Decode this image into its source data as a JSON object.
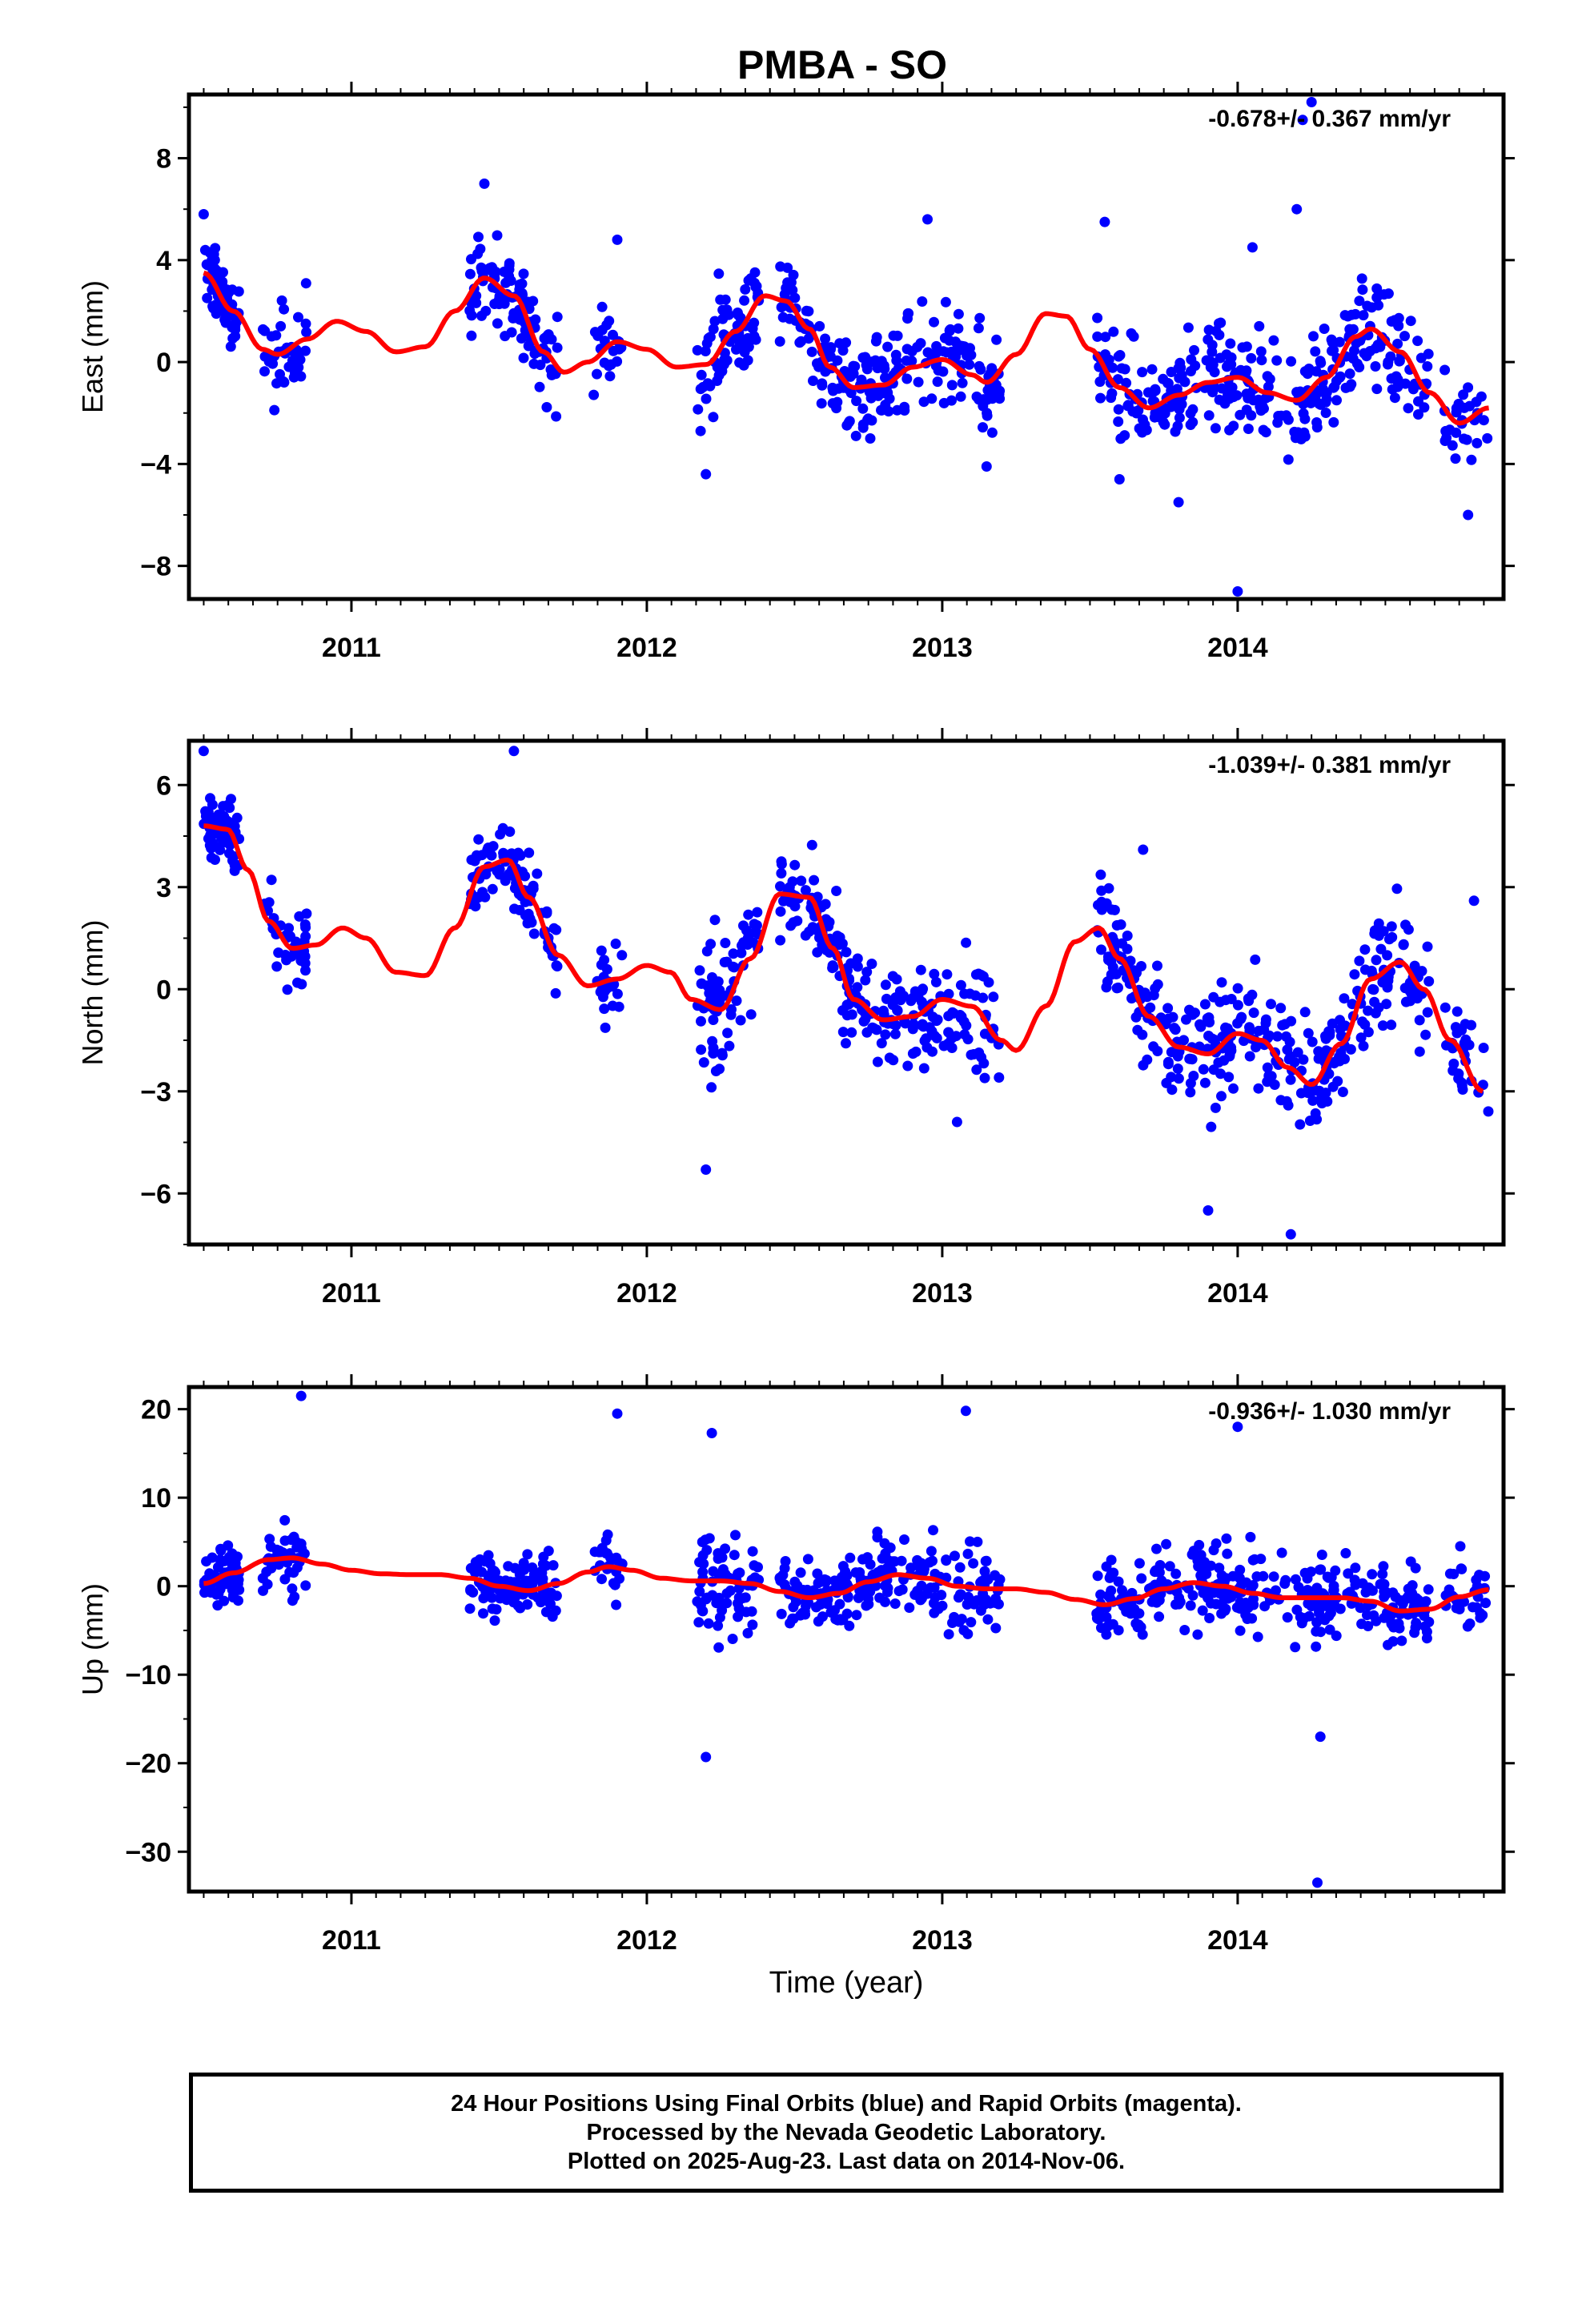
{
  "title": "PMBA - SO",
  "footer": {
    "line1": "24 Hour Positions Using Final Orbits (blue) and Rapid Orbits (magenta).",
    "line2": "Processed by the Nevada Geodetic Laboratory.",
    "line3": "Plotted on 2025-Aug-23. Last data on 2014-Nov-06."
  },
  "colors": {
    "points": "#0000ff",
    "fit": "#ff0000",
    "frame": "#000000"
  },
  "chart_data": [
    {
      "type": "scatter",
      "ylabel": "East (mm)",
      "xlabel": "",
      "rate_label": "-0.678+/- 0.367 mm/yr",
      "xlim": [
        2010.45,
        2014.9
      ],
      "ylim": [
        -9.3,
        10.5
      ],
      "yticks": [
        -8,
        -4,
        0,
        4,
        8
      ],
      "ytick_labels": [
        "−8",
        "−4",
        "0",
        "4",
        "8"
      ],
      "xticks": [
        2011,
        2012,
        2013,
        2014
      ],
      "xtick_labels": [
        "2011",
        "2012",
        "2013",
        "2014"
      ],
      "grid": false,
      "fit_line": {
        "name": "",
        "x": [
          2010.5,
          2010.6,
          2010.7,
          2010.75,
          2010.85,
          2010.95,
          2011.05,
          2011.15,
          2011.25,
          2011.35,
          2011.45,
          2011.55,
          2011.65,
          2011.72,
          2011.8,
          2011.9,
          2012.0,
          2012.1,
          2012.2,
          2012.3,
          2012.4,
          2012.47,
          2012.55,
          2012.62,
          2012.7,
          2012.8,
          2012.9,
          2013.0,
          2013.1,
          2013.15,
          2013.25,
          2013.35,
          2013.42,
          2013.5,
          2013.6,
          2013.7,
          2013.8,
          2013.9,
          2014.0,
          2014.1,
          2014.2,
          2014.3,
          2014.4,
          2014.45,
          2014.55,
          2014.65,
          2014.75,
          2014.85
        ],
        "y": [
          3.5,
          2.0,
          0.5,
          0.3,
          0.9,
          1.6,
          1.2,
          0.4,
          0.6,
          2.0,
          3.3,
          2.6,
          0.4,
          -0.4,
          0.0,
          0.8,
          0.5,
          -0.2,
          -0.1,
          1.2,
          2.6,
          2.4,
          1.3,
          -0.2,
          -1.0,
          -0.9,
          -0.2,
          0.1,
          -0.5,
          -0.8,
          0.3,
          1.9,
          1.8,
          0.5,
          -1.0,
          -1.8,
          -1.3,
          -0.8,
          -0.6,
          -1.2,
          -1.5,
          -0.6,
          1.0,
          1.3,
          0.4,
          -1.2,
          -2.4,
          -1.8
        ]
      },
      "outliers": [
        {
          "x": 2010.5,
          "y": 5.8
        },
        {
          "x": 2011.45,
          "y": 7.0
        },
        {
          "x": 2011.9,
          "y": 4.8
        },
        {
          "x": 2012.2,
          "y": -4.4
        },
        {
          "x": 2012.95,
          "y": 5.6
        },
        {
          "x": 2013.15,
          "y": -4.1
        },
        {
          "x": 2013.55,
          "y": 5.5
        },
        {
          "x": 2013.6,
          "y": -4.6
        },
        {
          "x": 2013.8,
          "y": -5.5
        },
        {
          "x": 2014.0,
          "y": -9.0
        },
        {
          "x": 2014.05,
          "y": 4.5
        },
        {
          "x": 2014.2,
          "y": 6.0
        },
        {
          "x": 2014.22,
          "y": 9.5
        },
        {
          "x": 2014.25,
          "y": 10.2
        },
        {
          "x": 2014.78,
          "y": -6.0
        }
      ],
      "segments": [
        {
          "x0": 2010.5,
          "x1": 2010.62,
          "n": 60,
          "spread": 1.0
        },
        {
          "x0": 2010.7,
          "x1": 2010.85,
          "n": 40,
          "spread": 1.5
        },
        {
          "x0": 2011.4,
          "x1": 2011.6,
          "n": 70,
          "spread": 1.3
        },
        {
          "x0": 2011.6,
          "x1": 2011.7,
          "n": 30,
          "spread": 1.5
        },
        {
          "x0": 2011.82,
          "x1": 2011.92,
          "n": 22,
          "spread": 1.3
        },
        {
          "x0": 2012.17,
          "x1": 2012.38,
          "n": 70,
          "spread": 1.8
        },
        {
          "x0": 2012.45,
          "x1": 2012.6,
          "n": 45,
          "spread": 1.2
        },
        {
          "x0": 2012.6,
          "x1": 2012.85,
          "n": 90,
          "spread": 1.5
        },
        {
          "x0": 2012.85,
          "x1": 2013.2,
          "n": 90,
          "spread": 1.6
        },
        {
          "x0": 2013.52,
          "x1": 2013.82,
          "n": 90,
          "spread": 1.5
        },
        {
          "x0": 2013.82,
          "x1": 2014.3,
          "n": 140,
          "spread": 1.6
        },
        {
          "x0": 2014.3,
          "x1": 2014.65,
          "n": 100,
          "spread": 1.5
        },
        {
          "x0": 2014.7,
          "x1": 2014.85,
          "n": 30,
          "spread": 1.3
        }
      ]
    },
    {
      "type": "scatter",
      "ylabel": "North (mm)",
      "xlabel": "",
      "rate_label": "-1.039+/- 0.381 mm/yr",
      "xlim": [
        2010.45,
        2014.9
      ],
      "ylim": [
        -7.5,
        7.3
      ],
      "yticks": [
        -6,
        -3,
        0,
        3,
        6
      ],
      "ytick_labels": [
        "−6",
        "−3",
        "0",
        "3",
        "6"
      ],
      "xticks": [
        2011,
        2012,
        2013,
        2014
      ],
      "xtick_labels": [
        "2011",
        "2012",
        "2013",
        "2014"
      ],
      "grid": false,
      "fit_line": {
        "name": "",
        "x": [
          2010.5,
          2010.58,
          2010.65,
          2010.72,
          2010.8,
          2010.88,
          2010.97,
          2011.05,
          2011.15,
          2011.25,
          2011.35,
          2011.45,
          2011.53,
          2011.6,
          2011.7,
          2011.8,
          2011.9,
          2012.0,
          2012.08,
          2012.15,
          2012.25,
          2012.35,
          2012.45,
          2012.55,
          2012.63,
          2012.7,
          2012.8,
          2012.9,
          2013.0,
          2013.1,
          2013.2,
          2013.25,
          2013.35,
          2013.45,
          2013.53,
          2013.6,
          2013.7,
          2013.8,
          2013.9,
          2014.0,
          2014.08,
          2014.17,
          2014.25,
          2014.35,
          2014.45,
          2014.55,
          2014.63,
          2014.72,
          2014.83
        ],
        "y": [
          4.8,
          4.7,
          3.5,
          2.0,
          1.2,
          1.3,
          1.8,
          1.5,
          0.5,
          0.4,
          1.8,
          3.6,
          3.8,
          2.7,
          1.0,
          0.1,
          0.3,
          0.7,
          0.5,
          -0.3,
          -0.6,
          0.9,
          2.8,
          2.7,
          1.2,
          -0.3,
          -0.9,
          -0.8,
          -0.3,
          -0.5,
          -1.5,
          -1.8,
          -0.5,
          1.4,
          1.8,
          0.9,
          -0.8,
          -1.7,
          -1.9,
          -1.3,
          -1.5,
          -2.3,
          -2.8,
          -1.6,
          0.3,
          0.8,
          0.0,
          -1.5,
          -3.0
        ]
      },
      "outliers": [
        {
          "x": 2010.5,
          "y": 7.0
        },
        {
          "x": 2011.55,
          "y": 7.0
        },
        {
          "x": 2012.2,
          "y": -5.3
        },
        {
          "x": 2013.05,
          "y": -3.9
        },
        {
          "x": 2013.68,
          "y": 4.1
        },
        {
          "x": 2013.9,
          "y": -6.5
        },
        {
          "x": 2014.18,
          "y": -7.2
        },
        {
          "x": 2014.8,
          "y": 2.6
        }
      ],
      "segments": [
        {
          "x0": 2010.5,
          "x1": 2010.62,
          "n": 60,
          "spread": 0.9
        },
        {
          "x0": 2010.7,
          "x1": 2010.85,
          "n": 40,
          "spread": 1.0
        },
        {
          "x0": 2011.4,
          "x1": 2011.6,
          "n": 70,
          "spread": 0.9
        },
        {
          "x0": 2011.6,
          "x1": 2011.7,
          "n": 30,
          "spread": 0.9
        },
        {
          "x0": 2011.82,
          "x1": 2011.92,
          "n": 22,
          "spread": 1.2
        },
        {
          "x0": 2012.17,
          "x1": 2012.38,
          "n": 70,
          "spread": 1.4
        },
        {
          "x0": 2012.45,
          "x1": 2012.6,
          "n": 45,
          "spread": 0.9
        },
        {
          "x0": 2012.6,
          "x1": 2012.85,
          "n": 90,
          "spread": 1.1
        },
        {
          "x0": 2012.85,
          "x1": 2013.2,
          "n": 90,
          "spread": 1.2
        },
        {
          "x0": 2013.52,
          "x1": 2013.82,
          "n": 90,
          "spread": 1.3
        },
        {
          "x0": 2013.82,
          "x1": 2014.3,
          "n": 140,
          "spread": 1.3
        },
        {
          "x0": 2014.3,
          "x1": 2014.65,
          "n": 100,
          "spread": 1.2
        },
        {
          "x0": 2014.7,
          "x1": 2014.85,
          "n": 30,
          "spread": 1.2
        }
      ]
    },
    {
      "type": "scatter",
      "ylabel": "Up (mm)",
      "xlabel": "Time (year)",
      "rate_label": "-0.936+/- 1.030 mm/yr",
      "xlim": [
        2010.45,
        2014.9
      ],
      "ylim": [
        -34.5,
        22.5
      ],
      "yticks": [
        -30,
        -20,
        -10,
        0,
        10,
        20
      ],
      "ytick_labels": [
        "−30",
        "−20",
        "−10",
        "0",
        "10",
        "20"
      ],
      "xticks": [
        2011,
        2012,
        2013,
        2014
      ],
      "xtick_labels": [
        "2011",
        "2012",
        "2013",
        "2014"
      ],
      "grid": false,
      "fit_line": {
        "name": "",
        "x": [
          2010.5,
          2010.6,
          2010.72,
          2010.8,
          2010.9,
          2011.0,
          2011.1,
          2011.2,
          2011.3,
          2011.4,
          2011.5,
          2011.6,
          2011.7,
          2011.8,
          2011.87,
          2011.95,
          2012.05,
          2012.15,
          2012.25,
          2012.35,
          2012.45,
          2012.55,
          2012.65,
          2012.75,
          2012.85,
          2012.95,
          2013.05,
          2013.15,
          2013.25,
          2013.35,
          2013.45,
          2013.55,
          2013.65,
          2013.75,
          2013.85,
          2013.95,
          2014.05,
          2014.15,
          2014.25,
          2014.35,
          2014.45,
          2014.55,
          2014.65,
          2014.75,
          2014.85
        ],
        "y": [
          0.3,
          1.5,
          3.0,
          3.2,
          2.5,
          1.8,
          1.4,
          1.3,
          1.3,
          0.9,
          0.0,
          -0.5,
          0.3,
          1.6,
          2.2,
          1.8,
          0.9,
          0.6,
          0.6,
          0.3,
          -0.6,
          -1.3,
          -0.8,
          0.5,
          1.3,
          0.9,
          0.0,
          -0.3,
          -0.3,
          -0.7,
          -1.5,
          -2.1,
          -1.4,
          -0.3,
          0.4,
          0.0,
          -0.8,
          -1.3,
          -1.3,
          -1.3,
          -1.7,
          -2.8,
          -2.6,
          -1.2,
          -0.4
        ]
      },
      "outliers": [
        {
          "x": 2010.83,
          "y": 21.5
        },
        {
          "x": 2011.9,
          "y": 19.5
        },
        {
          "x": 2012.2,
          "y": -19.3
        },
        {
          "x": 2012.22,
          "y": 17.3
        },
        {
          "x": 2013.08,
          "y": 19.8
        },
        {
          "x": 2014.0,
          "y": 18.0
        },
        {
          "x": 2014.27,
          "y": -33.5
        },
        {
          "x": 2014.28,
          "y": -17.0
        }
      ],
      "segments": [
        {
          "x0": 2010.5,
          "x1": 2010.62,
          "n": 60,
          "spread": 3.0
        },
        {
          "x0": 2010.7,
          "x1": 2010.85,
          "n": 40,
          "spread": 3.0
        },
        {
          "x0": 2011.4,
          "x1": 2011.6,
          "n": 70,
          "spread": 2.8
        },
        {
          "x0": 2011.6,
          "x1": 2011.7,
          "n": 30,
          "spread": 3.0
        },
        {
          "x0": 2011.82,
          "x1": 2011.92,
          "n": 22,
          "spread": 3.5
        },
        {
          "x0": 2012.17,
          "x1": 2012.38,
          "n": 70,
          "spread": 4.5
        },
        {
          "x0": 2012.45,
          "x1": 2012.6,
          "n": 45,
          "spread": 2.5
        },
        {
          "x0": 2012.6,
          "x1": 2012.85,
          "n": 90,
          "spread": 3.0
        },
        {
          "x0": 2012.85,
          "x1": 2013.2,
          "n": 90,
          "spread": 4.0
        },
        {
          "x0": 2013.52,
          "x1": 2013.82,
          "n": 90,
          "spread": 3.5
        },
        {
          "x0": 2013.82,
          "x1": 2014.3,
          "n": 140,
          "spread": 4.0
        },
        {
          "x0": 2014.3,
          "x1": 2014.65,
          "n": 100,
          "spread": 3.2
        },
        {
          "x0": 2014.7,
          "x1": 2014.85,
          "n": 30,
          "spread": 3.0
        }
      ]
    }
  ]
}
